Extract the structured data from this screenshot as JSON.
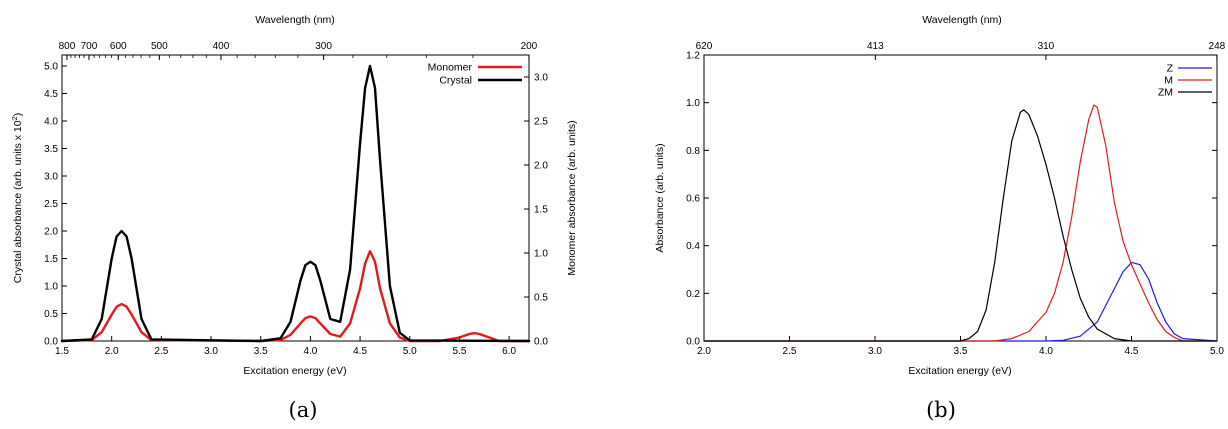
{
  "chart_data": [
    {
      "type": "line",
      "caption": "(a)",
      "xlabel": "Excitation energy (eV)",
      "xlim": [
        1.5,
        6.2
      ],
      "x_ticks": [
        1.5,
        2.0,
        2.5,
        3.0,
        3.5,
        4.0,
        4.5,
        5.0,
        5.5,
        6.0
      ],
      "x_tick_labels": [
        "1.5",
        "2.0",
        "2.5",
        "3.0",
        "3.5",
        "4.0",
        "4.5",
        "5.0",
        "5.5",
        "6.0"
      ],
      "ylabel_left": "Crystal absorbance (arb. units x 10",
      "ylabel_left_sup": "2",
      "ylabel_left_close": ")",
      "ylim_left": [
        0,
        5.2
      ],
      "y_ticks_left": [
        0,
        0.5,
        1.0,
        1.5,
        2.0,
        2.5,
        3.0,
        3.5,
        4.0,
        4.5,
        5.0
      ],
      "y_tick_labels_left": [
        "0.0",
        "0.5",
        "1.0",
        "1.5",
        "2.0",
        "2.5",
        "3.0",
        "3.5",
        "4.0",
        "4.5",
        "5.0"
      ],
      "ylabel_right": "Monomer absorbance (arb. units)",
      "ylim_right": [
        0,
        3.25
      ],
      "y_ticks_right": [
        0,
        0.5,
        1.0,
        1.5,
        2.0,
        2.5,
        3.0
      ],
      "y_tick_labels_right": [
        "0.0",
        "0.5",
        "1.0",
        "1.5",
        "2.0",
        "2.5",
        "3.0"
      ],
      "top_xlabel": "Wavelength (nm)",
      "top_ticks_nm": [
        800,
        700,
        600,
        500,
        400,
        300,
        200
      ],
      "top_tick_labels": [
        "800",
        "700",
        "600",
        "500",
        "400",
        "300",
        "200"
      ],
      "legend_position": "top-right",
      "series": [
        {
          "name": "Monomer",
          "color": "#e31a1c",
          "axis": "right",
          "x": [
            1.5,
            1.8,
            1.9,
            2.0,
            2.05,
            2.1,
            2.15,
            2.2,
            2.3,
            2.4,
            3.5,
            3.7,
            3.8,
            3.9,
            3.95,
            4.0,
            4.05,
            4.1,
            4.2,
            4.3,
            4.4,
            4.5,
            4.55,
            4.6,
            4.65,
            4.7,
            4.8,
            4.9,
            5.0,
            5.3,
            5.5,
            5.6,
            5.65,
            5.7,
            5.8,
            5.9,
            6.2
          ],
          "y": [
            0.0,
            0.01,
            0.1,
            0.3,
            0.39,
            0.42,
            0.39,
            0.3,
            0.1,
            0.01,
            0.0,
            0.01,
            0.07,
            0.2,
            0.26,
            0.28,
            0.26,
            0.2,
            0.08,
            0.05,
            0.2,
            0.6,
            0.88,
            1.02,
            0.9,
            0.6,
            0.2,
            0.04,
            0.0,
            0.0,
            0.04,
            0.08,
            0.09,
            0.08,
            0.04,
            0.0,
            0.0
          ]
        },
        {
          "name": "Crystal",
          "color": "#000000",
          "axis": "left",
          "x": [
            1.5,
            1.8,
            1.9,
            2.0,
            2.05,
            2.1,
            2.15,
            2.2,
            2.3,
            2.4,
            3.5,
            3.7,
            3.8,
            3.9,
            3.95,
            4.0,
            4.05,
            4.1,
            4.2,
            4.3,
            4.4,
            4.5,
            4.55,
            4.6,
            4.65,
            4.7,
            4.8,
            4.9,
            5.0,
            6.2
          ],
          "y": [
            0.0,
            0.03,
            0.4,
            1.5,
            1.9,
            2.0,
            1.9,
            1.5,
            0.4,
            0.03,
            0.0,
            0.05,
            0.35,
            1.1,
            1.38,
            1.44,
            1.38,
            1.1,
            0.4,
            0.35,
            1.3,
            3.6,
            4.6,
            5.0,
            4.6,
            3.3,
            1.0,
            0.15,
            0.01,
            0.0
          ]
        }
      ]
    },
    {
      "type": "line",
      "caption": "(b)",
      "xlabel": "Excitation energy (eV)",
      "xlim": [
        2.0,
        5.0
      ],
      "x_ticks": [
        2.0,
        2.5,
        3.0,
        3.5,
        4.0,
        4.5,
        5.0
      ],
      "x_tick_labels": [
        "2.0",
        "2.5",
        "3.0",
        "3.5",
        "4.0",
        "4.5",
        "5.0"
      ],
      "ylabel": "Absorbance (arb. units)",
      "ylim": [
        0,
        1.2
      ],
      "y_ticks": [
        0,
        0.2,
        0.4,
        0.6,
        0.8,
        1.0,
        1.2
      ],
      "y_tick_labels": [
        "0.0",
        "0.2",
        "0.4",
        "0.6",
        "0.8",
        "1.0",
        "1.2"
      ],
      "top_xlabel": "Wavelength (nm)",
      "top_ticks_nm": [
        620,
        413,
        310,
        248
      ],
      "top_tick_labels": [
        "620",
        "413",
        "310",
        "248"
      ],
      "legend_position": "top-right",
      "series": [
        {
          "name": "Z",
          "color": "#1a1aee",
          "x": [
            2.0,
            4.0,
            4.1,
            4.2,
            4.3,
            4.4,
            4.45,
            4.5,
            4.55,
            4.6,
            4.65,
            4.7,
            4.75,
            4.8,
            5.0
          ],
          "y": [
            0.0,
            0.0,
            0.003,
            0.02,
            0.08,
            0.22,
            0.29,
            0.33,
            0.32,
            0.26,
            0.16,
            0.08,
            0.03,
            0.01,
            0.0
          ],
          "color_name": "blue"
        },
        {
          "name": "M",
          "color": "#e31a1c",
          "x": [
            2.0,
            3.7,
            3.8,
            3.9,
            4.0,
            4.05,
            4.1,
            4.15,
            4.2,
            4.25,
            4.28,
            4.3,
            4.35,
            4.4,
            4.45,
            4.5,
            4.55,
            4.6,
            4.65,
            4.7,
            4.75,
            4.8,
            5.0
          ],
          "y": [
            0.0,
            0.0,
            0.01,
            0.04,
            0.12,
            0.2,
            0.33,
            0.52,
            0.75,
            0.93,
            0.99,
            0.98,
            0.82,
            0.58,
            0.42,
            0.32,
            0.24,
            0.16,
            0.09,
            0.04,
            0.015,
            0.0,
            0.0
          ],
          "color_name": "red"
        },
        {
          "name": "ZM",
          "color": "#000000",
          "x": [
            2.0,
            3.5,
            3.55,
            3.6,
            3.65,
            3.7,
            3.75,
            3.8,
            3.85,
            3.87,
            3.9,
            3.95,
            4.0,
            4.05,
            4.1,
            4.15,
            4.2,
            4.25,
            4.3,
            4.4,
            4.5,
            5.0
          ],
          "y": [
            0.0,
            0.0,
            0.01,
            0.04,
            0.13,
            0.33,
            0.6,
            0.84,
            0.96,
            0.97,
            0.95,
            0.86,
            0.74,
            0.6,
            0.44,
            0.3,
            0.18,
            0.1,
            0.05,
            0.01,
            0.0,
            0.0
          ],
          "color_name": "black"
        }
      ]
    }
  ]
}
